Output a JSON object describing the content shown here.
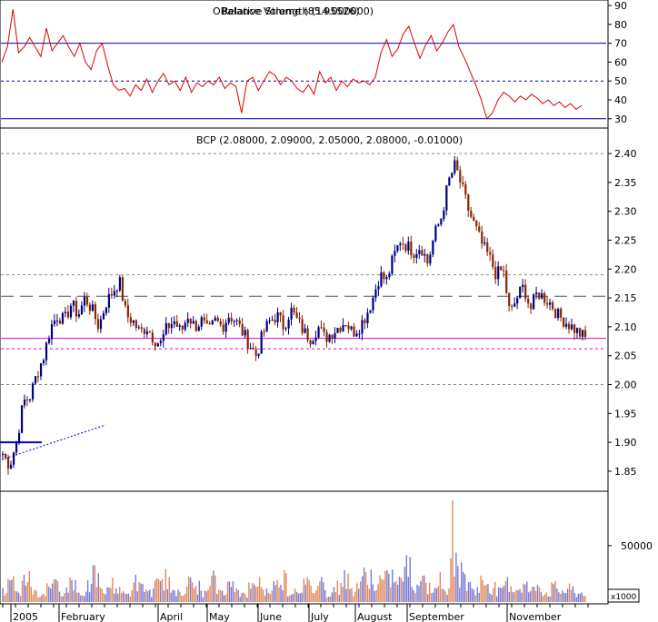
{
  "chart_data": [
    {
      "panel": "rsi",
      "type": "line",
      "title": "Relative Strength (14.000000)",
      "overlay_title": "OBalance Volume (85.95526)",
      "ylim": [
        27,
        91
      ],
      "yticks": [
        30,
        40,
        50,
        60,
        70,
        80,
        90
      ],
      "reference_lines": [
        {
          "value": 70,
          "style": "solid"
        },
        {
          "value": 50,
          "style": "dotted"
        },
        {
          "value": 30,
          "style": "solid"
        }
      ],
      "line_color": "#dd0000",
      "series": [
        {
          "values": [
            60,
            68,
            88,
            65,
            68,
            73,
            68,
            63,
            78,
            66,
            70,
            74,
            68,
            63,
            70,
            60,
            56,
            66,
            70,
            58,
            48,
            45,
            46,
            42,
            48,
            45,
            51,
            44,
            50,
            54,
            48,
            50,
            45,
            52,
            44,
            49,
            47,
            50,
            48,
            52,
            46,
            49,
            47,
            33,
            50,
            52,
            45,
            50,
            55,
            53,
            48,
            52,
            50,
            46,
            44,
            48,
            43,
            55,
            49,
            52,
            45,
            50,
            47,
            51,
            49,
            50,
            48,
            52,
            65,
            72,
            63,
            67,
            75,
            79,
            70,
            62,
            69,
            74,
            66,
            70,
            76,
            80,
            68,
            62,
            55,
            48,
            40,
            30,
            33,
            40,
            44,
            42,
            39,
            42,
            40,
            43,
            41,
            38,
            40,
            37,
            39,
            36,
            38,
            35,
            37
          ]
        }
      ]
    },
    {
      "panel": "price",
      "type": "candlestick",
      "title": "BCP (2.08000, 2.09000, 2.05000, 2.08000, -0.01000)",
      "ylim": [
        1.82,
        2.43
      ],
      "yticks": [
        1.85,
        1.9,
        1.95,
        2.0,
        2.05,
        2.1,
        2.15,
        2.2,
        2.25,
        2.3,
        2.35,
        2.4
      ],
      "reference_lines": [
        {
          "value": 2.4,
          "style": "dotted",
          "color": "#888888"
        },
        {
          "value": 2.19,
          "style": "dotted",
          "color": "#888888"
        },
        {
          "value": 2.153,
          "style": "dashed",
          "color": "#555555"
        },
        {
          "value": 2.08,
          "style": "solid",
          "color": "#dd00dd"
        },
        {
          "value": 2.062,
          "style": "dotted",
          "color": "#dd00dd"
        },
        {
          "value": 2.0,
          "style": "dotted",
          "color": "#888888"
        }
      ],
      "support_segment": {
        "value": 1.9,
        "color": "#0000cc"
      },
      "trendline": {
        "from": 1.87,
        "to": 1.93,
        "style": "dotted",
        "color": "#0000cc"
      },
      "up_color": "#000080",
      "down_color": "#8b2500",
      "close_path": [
        1.88,
        1.86,
        1.9,
        1.97,
        1.98,
        2.02,
        2.05,
        2.1,
        2.12,
        2.11,
        2.14,
        2.12,
        2.15,
        2.13,
        2.1,
        2.14,
        2.16,
        2.18,
        2.12,
        2.11,
        2.09,
        2.1,
        2.08,
        2.07,
        2.1,
        2.11,
        2.09,
        2.12,
        2.1,
        2.11,
        2.09,
        2.11,
        2.1,
        2.12,
        2.11,
        2.09,
        2.07,
        2.05,
        2.09,
        2.11,
        2.12,
        2.1,
        2.13,
        2.11,
        2.09,
        2.08,
        2.1,
        2.08,
        2.09,
        2.1,
        2.11,
        2.09,
        2.1,
        2.12,
        2.15,
        2.19,
        2.18,
        2.22,
        2.25,
        2.24,
        2.23,
        2.24,
        2.21,
        2.26,
        2.29,
        2.35,
        2.38,
        2.34,
        2.3,
        2.27,
        2.24,
        2.22,
        2.19,
        2.2,
        2.12,
        2.15,
        2.17,
        2.13,
        2.16,
        2.15,
        2.14,
        2.12,
        2.11,
        2.1,
        2.09,
        2.08
      ]
    },
    {
      "panel": "volume",
      "type": "bar",
      "ylabel_unit": "x1000",
      "ylim": [
        0,
        95000
      ],
      "yticks": [
        50000
      ],
      "colors": [
        "#7a7ad6",
        "#e0885a"
      ],
      "series": [
        {
          "values": [
            12000,
            22000,
            9000,
            31000,
            15000,
            8000,
            25000,
            19000,
            14000,
            27000,
            11000,
            18000,
            30000,
            13000,
            21000,
            16000,
            9000,
            24000,
            17000,
            12000,
            20000,
            28000,
            10000,
            15000,
            22000,
            18000,
            11000,
            26000,
            14000,
            19000,
            23000,
            9000,
            17000,
            25000,
            13000,
            20000,
            29000,
            12000,
            16000,
            21000,
            15000,
            24000,
            10000,
            18000,
            27000,
            14000,
            22000,
            32000,
            19000,
            26000,
            30000,
            23000,
            40000,
            21000,
            28000,
            17000,
            25000,
            13000,
            90000,
            34000,
            20000,
            15000,
            24000,
            18000,
            12000,
            22000,
            16000,
            19000,
            14000,
            21000,
            11000,
            17000,
            13000,
            15000,
            10000,
            12000
          ]
        }
      ]
    }
  ],
  "x_axis": {
    "months": [
      "2005",
      "February",
      "April",
      "May",
      "June",
      "July",
      "August",
      "September",
      "November"
    ]
  }
}
